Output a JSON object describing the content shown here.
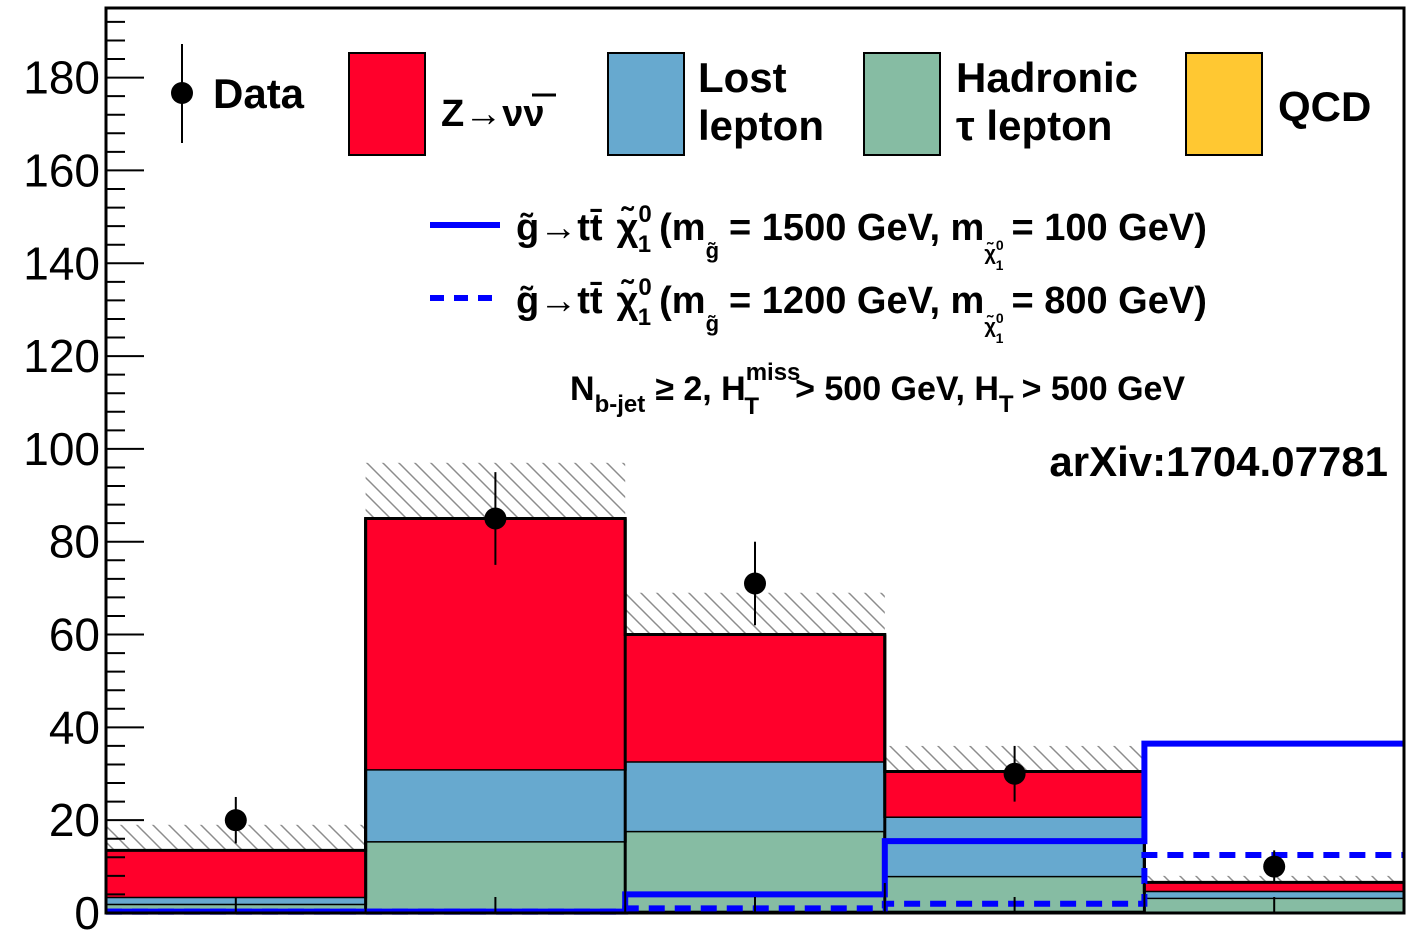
{
  "chart_data": {
    "type": "bar",
    "stacked": true,
    "bins": [
      {
        "lo": 0,
        "hi": 1
      },
      {
        "lo": 1,
        "hi": 2
      },
      {
        "lo": 2,
        "hi": 3
      },
      {
        "lo": 3,
        "hi": 4
      },
      {
        "lo": 4,
        "hi": 5
      }
    ],
    "ylim": [
      0,
      195
    ],
    "yticks": [
      "0",
      "20",
      "40",
      "60",
      "80",
      "100",
      "120",
      "140",
      "160",
      "180"
    ],
    "yticks_values": [
      0,
      20,
      40,
      60,
      80,
      100,
      120,
      140,
      160,
      180
    ],
    "stack": [
      {
        "name": "QCD",
        "color": "#ffc832",
        "values": [
          0.5,
          0.5,
          0.5,
          0.5,
          0.3
        ]
      },
      {
        "name": "Hadronic τ lepton",
        "color": "#86bca3",
        "values": [
          1.5,
          15.0,
          17.2,
          7.5,
          3.0
        ]
      },
      {
        "name": "Lost lepton",
        "color": "#67a9cf",
        "values": [
          1.5,
          15.5,
          15.0,
          12.8,
          1.5
        ]
      },
      {
        "name": "Z→νν̄",
        "color": "#ff002b",
        "values": [
          10.0,
          54.0,
          27.3,
          9.7,
          1.8
        ]
      }
    ],
    "uncertainty": [
      {
        "lo": 9,
        "hi": 19
      },
      {
        "lo": 74,
        "hi": 97
      },
      {
        "lo": 52,
        "hi": 69
      },
      {
        "lo": 26,
        "hi": 36
      },
      {
        "lo": 5,
        "hi": 8
      }
    ],
    "data": {
      "name": "Data",
      "x": [
        0.5,
        1.5,
        2.5,
        3.5,
        4.5
      ],
      "y": [
        20,
        85,
        71,
        30,
        10
      ],
      "err": [
        5,
        10,
        9,
        6,
        3.5
      ]
    },
    "signals": [
      {
        "name": "g̃→tt̄ χ̃⁰₁ (m_g̃ = 1500 GeV, m_χ̃⁰₁ = 100 GeV)",
        "color": "#0000ff",
        "style": "solid",
        "values": [
          0.3,
          0.3,
          4.0,
          15.5,
          36.5
        ]
      },
      {
        "name": "g̃→tt̄ χ̃⁰₁ (m_g̃ = 1200 GeV, m_χ̃⁰₁ = 800 GeV)",
        "color": "#0000ff",
        "style": "dashed",
        "values": [
          0.3,
          0.3,
          1.0,
          2.0,
          12.5
        ]
      }
    ],
    "legend_placement": "top",
    "selection": "N_b-jet ≥ 2, H_T^miss > 500 GeV, H_T > 500 GeV",
    "reference": "arXiv:1704.07781"
  },
  "legend": {
    "data_label": "Data",
    "z_label_main": "Z→νν",
    "z_label_bar": "ν",
    "lost_line1": "Lost",
    "lost_line2": "lepton",
    "had_line1": "Hadronic",
    "had_line2": "τ lepton",
    "qcd_label": "QCD",
    "sig1_main": "g̃→tt̄",
    "sig1_chi": "χ̃",
    "sig1_chi_sup": "0",
    "sig1_chi_sub": "1",
    "sig1_m1": "(m",
    "sig1_m1_sub": "g̃",
    "sig1_eq1": "= 1500 GeV, m",
    "sig1_m2_sub": "χ̃",
    "sig1_m2_sub_sup": "0",
    "sig1_m2_sub_sub": "1",
    "sig1_eq2": "= 100 GeV)",
    "sig2_main": "g̃→tt̄",
    "sig2_chi": "χ̃",
    "sig2_chi_sup": "0",
    "sig2_chi_sub": "1",
    "sig2_m1": "(m",
    "sig2_m1_sub": "g̃",
    "sig2_eq1": "= 1200 GeV, m",
    "sig2_m2_sub": "χ̃",
    "sig2_m2_sub_sup": "0",
    "sig2_m2_sub_sub": "1",
    "sig2_eq2": "= 800 GeV)"
  },
  "annotation": {
    "n": "N",
    "n_sub": "b-jet",
    "geq": "≥ 2, H",
    "h_sup": "miss",
    "h_sub": "T",
    "mid": "> 500 GeV, H",
    "ht_sub": "T",
    "end": "> 500 GeV",
    "reference": "arXiv:1704.07781"
  }
}
